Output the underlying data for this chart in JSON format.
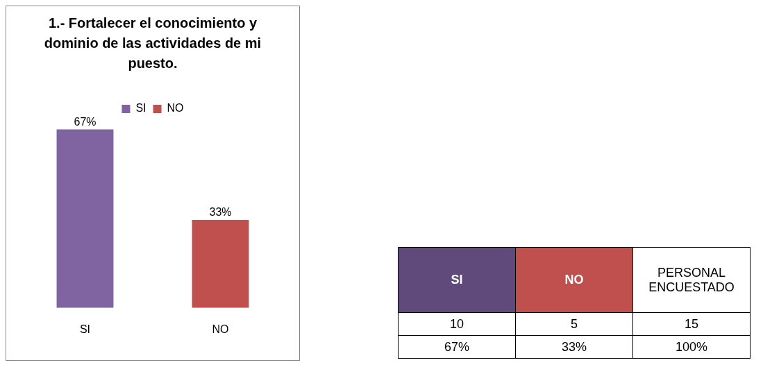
{
  "chart_data": [
    {
      "type": "bar",
      "title": "1.- Fortalecer el conocimiento y dominio de las actividades de mi puesto.",
      "categories": [
        "SI",
        "NO"
      ],
      "legend": "top",
      "grid": false,
      "tick_labels": "x",
      "series": [
        {
          "name": "SI",
          "color": "#8064a2",
          "values": [
            67,
            null
          ],
          "value_labels": [
            "67%",
            null
          ]
        },
        {
          "name": "NO",
          "color": "#c0504d",
          "values": [
            null,
            33
          ],
          "value_labels": [
            null,
            "33%"
          ]
        }
      ]
    },
    {
      "type": "other",
      "categories": [
        "SI",
        "NO",
        "PERSONAL ENCUESTADO"
      ],
      "colors": [
        "#604a7b",
        "#c0504d",
        null
      ],
      "data_labels": true,
      "series": [
        {
          "values": [
            10,
            5,
            15
          ]
        },
        {
          "values": [
            67,
            33,
            100
          ],
          "value_labels": [
            "67%",
            "33%",
            "100%"
          ]
        }
      ]
    }
  ]
}
